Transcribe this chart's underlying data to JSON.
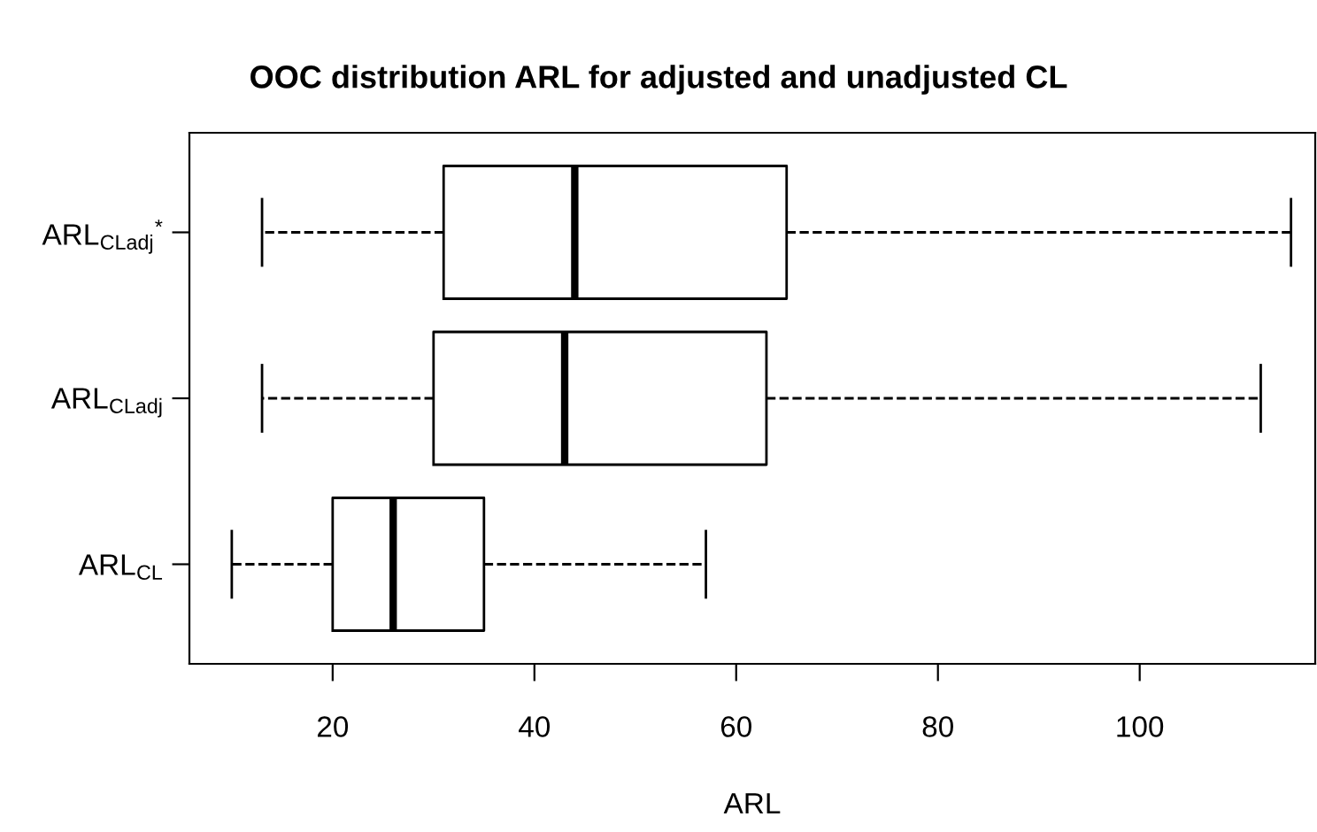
{
  "chart_data": {
    "type": "box",
    "title": "OOC distribution ARL for adjusted and unadjusted CL",
    "xlabel": "ARL",
    "orientation": "horizontal",
    "categories": [
      "ARL$_{CLadj}$$^{*}$",
      "ARL$_{CLadj}$",
      "ARL$_{CL}$"
    ],
    "boxes": [
      {
        "low": 13,
        "q1": 31,
        "median": 44,
        "q3": 65,
        "high": 115
      },
      {
        "low": 13,
        "q1": 30,
        "median": 43,
        "q3": 63,
        "high": 112
      },
      {
        "low": 10,
        "q1": 20,
        "median": 26,
        "q3": 35,
        "high": 57
      }
    ],
    "xlim": [
      5.8,
      117.4
    ],
    "xticks": [
      20,
      40,
      60,
      80,
      100
    ],
    "grid": false,
    "line_style": "dashed"
  }
}
